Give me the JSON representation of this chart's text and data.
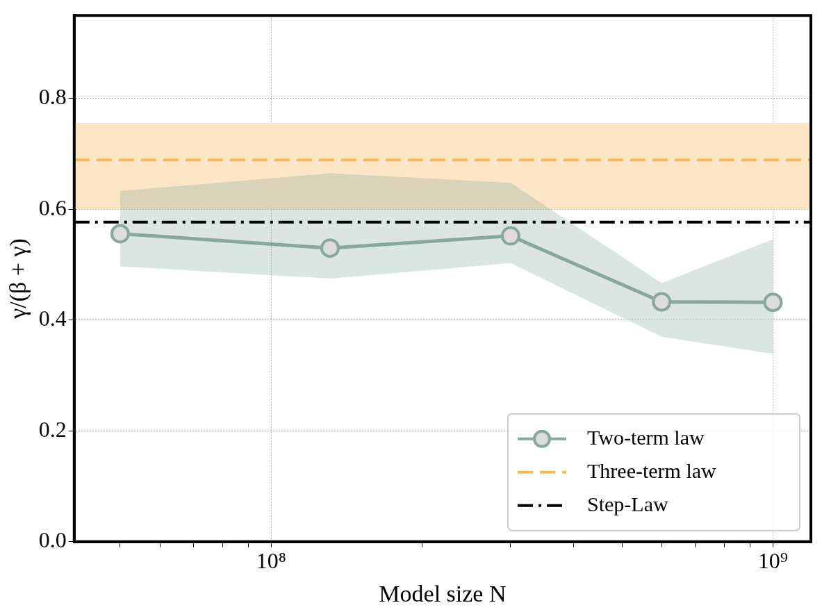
{
  "chart_data": {
    "type": "line",
    "xlabel": "Model size N",
    "ylabel": "γ/(β + γ)",
    "log": "x",
    "grid": true,
    "legend": "bottom right",
    "marker": "circle",
    "xlim": [
      40500000,
      1190000000
    ],
    "ylim": [
      0,
      0.95
    ],
    "xticks": [
      {
        "value": 50000000,
        "label": null
      },
      {
        "value": 60000000,
        "label": null
      },
      {
        "value": 70000000,
        "label": null
      },
      {
        "value": 80000000,
        "label": null
      },
      {
        "value": 90000000,
        "label": null
      },
      {
        "value": 100000000,
        "label": "10⁸"
      },
      {
        "value": 200000000,
        "label": null
      },
      {
        "value": 300000000,
        "label": null
      },
      {
        "value": 400000000,
        "label": null
      },
      {
        "value": 500000000,
        "label": null
      },
      {
        "value": 600000000,
        "label": null
      },
      {
        "value": 700000000,
        "label": null
      },
      {
        "value": 800000000,
        "label": null
      },
      {
        "value": 900000000,
        "label": null
      },
      {
        "value": 1000000000,
        "label": "10⁹"
      }
    ],
    "yticks": [
      {
        "value": 0,
        "label": "0.0"
      },
      0.2,
      0.4,
      0.6,
      0.8
    ],
    "x": [
      50000000,
      131000000,
      300000000,
      600000000,
      1000000000
    ],
    "series": [
      {
        "name": "Two-term law",
        "color": "#89a89d",
        "values": [
          0.556,
          0.53,
          0.552,
          0.433,
          0.432
        ],
        "lower": [
          0.497,
          0.475,
          0.503,
          0.37,
          0.339
        ],
        "upper": [
          0.633,
          0.665,
          0.648,
          0.467,
          0.546
        ]
      }
    ],
    "ref_lines": [
      {
        "axis": "y",
        "value": 0.689,
        "label": "Three-term law",
        "color": "#f5b85a",
        "line_style": "dashed"
      },
      {
        "axis": "y",
        "value": 0.577,
        "label": "Step-Law",
        "color": "#000000",
        "line_style": "dashdot"
      }
    ],
    "bands": [
      {
        "axis": "y",
        "from": 0.6,
        "to": 0.756,
        "color": "#fbe6c6"
      }
    ]
  }
}
